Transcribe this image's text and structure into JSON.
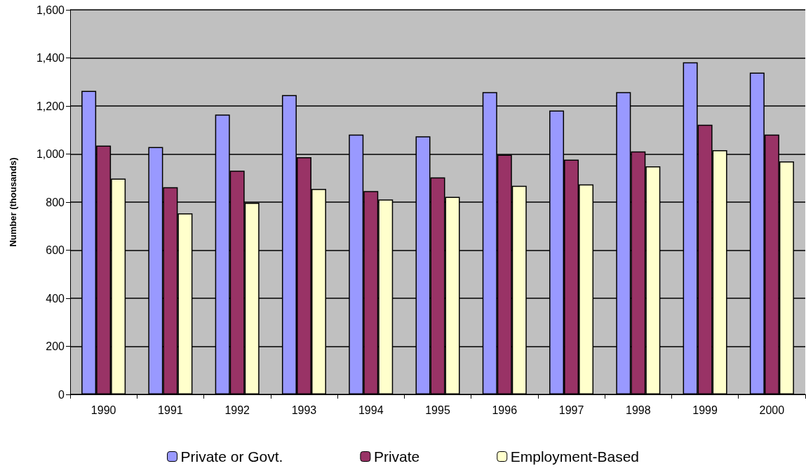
{
  "chart_data": {
    "type": "bar",
    "ylabel": "Number (thousands)",
    "categories": [
      "1990",
      "1991",
      "1992",
      "1993",
      "1994",
      "1995",
      "1996",
      "1997",
      "1998",
      "1999",
      "2000"
    ],
    "series": [
      {
        "name": "Private or Govt.",
        "color": "#9999ff",
        "values": [
          1263,
          1029,
          1164,
          1245,
          1081,
          1074,
          1258,
          1181,
          1258,
          1382,
          1339
        ]
      },
      {
        "name": "Private",
        "color": "#993366",
        "values": [
          1035,
          862,
          931,
          987,
          846,
          903,
          997,
          977,
          1011,
          1122,
          1081
        ]
      },
      {
        "name": "Employment-Based",
        "color": "#ffffcc",
        "values": [
          898,
          753,
          797,
          855,
          811,
          822,
          868,
          874,
          949,
          1016,
          969
        ]
      }
    ],
    "ylim": [
      0,
      1600
    ],
    "yticks": [
      0,
      200,
      400,
      600,
      800,
      {
        "value": 1000,
        "label": "1,000"
      },
      {
        "value": 1200,
        "label": "1,200"
      },
      {
        "value": 1400,
        "label": "1,400"
      },
      {
        "value": 1600,
        "label": "1,600"
      }
    ],
    "grid": "y",
    "legend": "bottom"
  }
}
